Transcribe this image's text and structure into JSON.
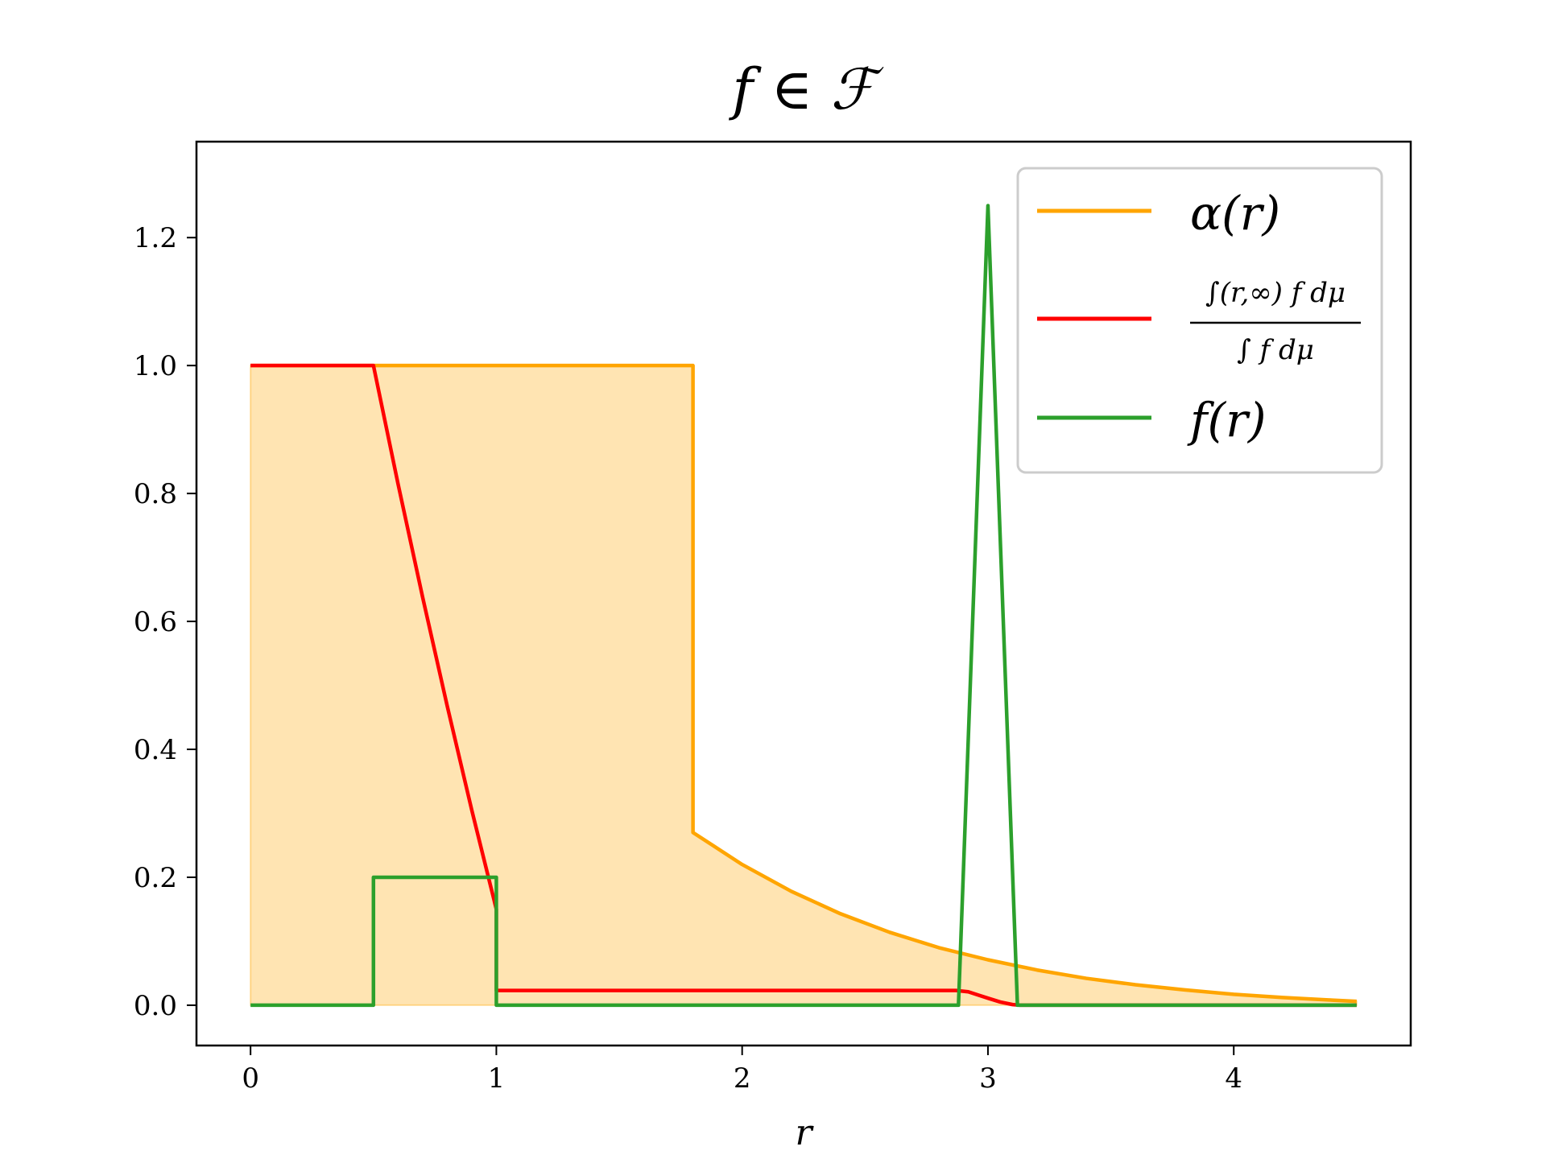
{
  "chart_data": {
    "type": "line",
    "title": "f ∈ ℱ",
    "xlabel": "r",
    "ylabel": "",
    "xlim": [
      -0.22,
      4.72
    ],
    "ylim": [
      -0.063,
      1.35
    ],
    "x_ticks": [
      0,
      1,
      2,
      3,
      4
    ],
    "x_tick_labels": [
      "0",
      "1",
      "2",
      "3",
      "4"
    ],
    "y_ticks": [
      0.0,
      0.2,
      0.4,
      0.6,
      0.8,
      1.0,
      1.2
    ],
    "y_tick_labels": [
      "0.0",
      "0.2",
      "0.4",
      "0.6",
      "0.8",
      "1.0",
      "1.2"
    ],
    "grid": false,
    "legend_position": "top-right",
    "series": [
      {
        "name": "α(r)",
        "color": "#ffa500",
        "fill": true,
        "fill_color": "#ffa500",
        "fill_opacity": 0.3,
        "points": [
          [
            0,
            1.0
          ],
          [
            1.8,
            1.0
          ],
          [
            1.8,
            0.27
          ],
          [
            2.0,
            0.22
          ],
          [
            2.2,
            0.178
          ],
          [
            2.4,
            0.143
          ],
          [
            2.6,
            0.114
          ],
          [
            2.8,
            0.09
          ],
          [
            3.0,
            0.071
          ],
          [
            3.2,
            0.055
          ],
          [
            3.4,
            0.042
          ],
          [
            3.6,
            0.032
          ],
          [
            3.8,
            0.024
          ],
          [
            4.0,
            0.017
          ],
          [
            4.2,
            0.012
          ],
          [
            4.4,
            0.008
          ],
          [
            4.5,
            0.006
          ]
        ]
      },
      {
        "name": "∫(r,∞) f dμ / ∫ f dμ",
        "legend_numerator": "∫(r,∞) f dμ",
        "legend_denominator": "∫ f dμ",
        "color": "#ff0000",
        "fill": false,
        "points": [
          [
            0,
            1.0
          ],
          [
            0.5,
            1.0
          ],
          [
            0.6,
            0.815
          ],
          [
            0.7,
            0.638
          ],
          [
            0.8,
            0.468
          ],
          [
            0.9,
            0.305
          ],
          [
            1.0,
            0.15
          ],
          [
            1.0,
            0.023
          ],
          [
            2.87,
            0.023
          ],
          [
            2.92,
            0.021
          ],
          [
            2.96,
            0.016
          ],
          [
            3.0,
            0.011
          ],
          [
            3.05,
            0.005
          ],
          [
            3.1,
            0.001
          ],
          [
            3.13,
            0.0
          ],
          [
            4.5,
            0.0
          ]
        ]
      },
      {
        "name": "f(r)",
        "color": "#2ca02c",
        "fill": false,
        "points": [
          [
            0,
            0.0
          ],
          [
            0.5,
            0.0
          ],
          [
            0.5,
            0.2
          ],
          [
            1.0,
            0.2
          ],
          [
            1.0,
            0.0
          ],
          [
            2.88,
            0.0
          ],
          [
            3.0,
            1.25
          ],
          [
            3.12,
            0.0
          ],
          [
            4.5,
            0.0
          ]
        ]
      }
    ]
  }
}
